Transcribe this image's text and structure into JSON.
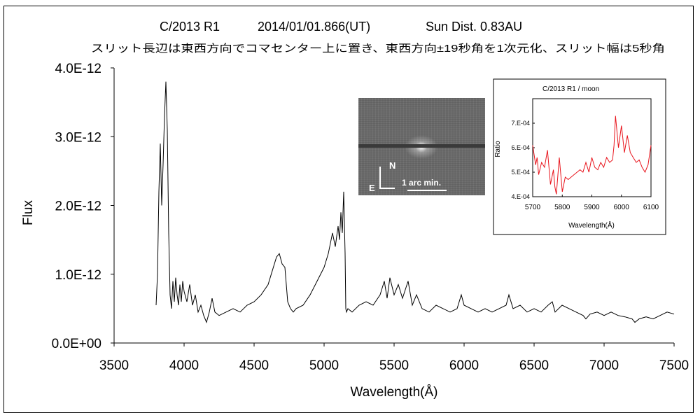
{
  "title": {
    "line1_a": "C/2013 R1",
    "line1_b": "2014/01/01.866(UT)",
    "line1_c": "Sun Dist. 0.83AU",
    "line2": "スリット長辺は東西方向でコマセンター上に置き、東西方向±19秒角を1次元化、スリット幅は5秒角"
  },
  "photo": {
    "north": "N",
    "east": "E",
    "scale_label": "1 arc min."
  },
  "chart_data": [
    {
      "type": "line",
      "xlabel": "Wavelength(Å)",
      "ylabel": "Flux",
      "xlim": [
        3500,
        7500
      ],
      "ylim": [
        0,
        4e-12
      ],
      "x_ticks": [
        3500,
        4000,
        4500,
        5000,
        5500,
        6000,
        6500,
        7000,
        7500
      ],
      "y_ticks": [
        0,
        1e-12,
        2e-12,
        3e-12,
        4e-12
      ],
      "y_tick_labels": [
        "0.0E+00",
        "1.0E-12",
        "2.0E-12",
        "3.0E-12",
        "4.0E-12"
      ],
      "grid": false,
      "color": "#000000",
      "series": [
        {
          "x": [
            3800,
            3810,
            3820,
            3830,
            3840,
            3850,
            3860,
            3870,
            3880,
            3890,
            3900,
            3910,
            3920,
            3930,
            3940,
            3950,
            3960,
            3970,
            3980,
            3990,
            4000,
            4020,
            4040,
            4060,
            4080,
            4100,
            4120,
            4140,
            4160,
            4180,
            4200,
            4220,
            4250,
            4300,
            4350,
            4400,
            4450,
            4500,
            4550,
            4600,
            4630,
            4660,
            4680,
            4700,
            4720,
            4740,
            4760,
            4780,
            4800,
            4850,
            4900,
            4950,
            5000,
            5030,
            5060,
            5080,
            5100,
            5110,
            5120,
            5130,
            5140,
            5150,
            5155,
            5160,
            5170,
            5200,
            5250,
            5300,
            5350,
            5400,
            5430,
            5450,
            5470,
            5500,
            5530,
            5560,
            5600,
            5630,
            5660,
            5700,
            5750,
            5800,
            5850,
            5900,
            5950,
            5980,
            6000,
            6050,
            6100,
            6150,
            6200,
            6250,
            6300,
            6320,
            6350,
            6400,
            6450,
            6500,
            6550,
            6600,
            6630,
            6650,
            6700,
            6750,
            6800,
            6850,
            6870,
            6900,
            6950,
            7000,
            7050,
            7100,
            7150,
            7200,
            7220,
            7250,
            7300,
            7350,
            7400,
            7450,
            7500
          ],
          "y": [
            5.5e-13,
            1e-12,
            2.2e-12,
            2.9e-12,
            2e-12,
            2.6e-12,
            3.3e-12,
            3.8e-12,
            3.1e-12,
            1.6e-12,
            7e-13,
            5e-13,
            9e-13,
            6e-13,
            9.5e-13,
            7e-13,
            5.5e-13,
            8.5e-13,
            6e-13,
            9e-13,
            7.5e-13,
            6e-13,
            8.5e-13,
            5.5e-13,
            7e-13,
            4.5e-13,
            5.5e-13,
            4e-13,
            3e-13,
            4.5e-13,
            6.5e-13,
            4.5e-13,
            4e-13,
            4.5e-13,
            5e-13,
            4.5e-13,
            5.5e-13,
            6e-13,
            7e-13,
            8.5e-13,
            1.05e-12,
            1.25e-12,
            1.3e-12,
            1.15e-12,
            1.1e-12,
            6e-13,
            5e-13,
            4.5e-13,
            5e-13,
            5.5e-13,
            7e-13,
            9e-13,
            1.1e-12,
            1.3e-12,
            1.6e-12,
            1.4e-12,
            1.7e-12,
            1.5e-12,
            1.9e-12,
            1.6e-12,
            2.2e-12,
            1.3e-12,
            5e-13,
            4.5e-13,
            5e-13,
            4.5e-13,
            5.5e-13,
            6e-13,
            5.5e-13,
            7e-13,
            9e-13,
            6.5e-13,
            9.5e-13,
            7e-13,
            8.5e-13,
            6.5e-13,
            9e-13,
            5.5e-13,
            7e-13,
            5e-13,
            4.5e-13,
            5.5e-13,
            5e-13,
            4.5e-13,
            5e-13,
            7e-13,
            5.5e-13,
            5e-13,
            4.5e-13,
            5e-13,
            4.5e-13,
            5e-13,
            5.5e-13,
            7e-13,
            5e-13,
            5.5e-13,
            4.5e-13,
            5e-13,
            4.5e-13,
            5.5e-13,
            6e-13,
            4.5e-13,
            5.5e-13,
            5e-13,
            4.5e-13,
            4e-13,
            3.5e-13,
            4.2e-13,
            4.5e-13,
            4e-13,
            4.5e-13,
            4e-13,
            3.8e-13,
            3.5e-13,
            3e-13,
            3.5e-13,
            3.8e-13,
            3.5e-13,
            4e-13,
            4.5e-13,
            4.2e-13
          ]
        }
      ]
    },
    {
      "type": "line",
      "title": "C/2013 R1 / moon",
      "xlabel": "Wavelength(Å)",
      "ylabel": "Ratio",
      "xlim": [
        5700,
        6100
      ],
      "ylim": [
        0.0004,
        0.0008
      ],
      "x_ticks": [
        5700,
        5800,
        5900,
        6000,
        6100
      ],
      "y_ticks": [
        0.0004,
        0.0005,
        0.0006,
        0.0007
      ],
      "y_tick_labels": [
        "4.E-04",
        "5.E-04",
        "6.E-04",
        "7.E-04"
      ],
      "grid": false,
      "color": "#e8141c",
      "series": [
        {
          "x": [
            5700,
            5710,
            5715,
            5720,
            5730,
            5740,
            5750,
            5760,
            5770,
            5775,
            5780,
            5790,
            5800,
            5810,
            5820,
            5830,
            5840,
            5850,
            5860,
            5870,
            5880,
            5890,
            5900,
            5910,
            5920,
            5930,
            5940,
            5950,
            5960,
            5970,
            5975,
            5980,
            5990,
            6000,
            6010,
            6020,
            6030,
            6040,
            6050,
            6060,
            6070,
            6080,
            6090,
            6100
          ],
          "y": [
            0.00061,
            0.00053,
            0.00056,
            0.00049,
            0.00054,
            0.00052,
            0.00059,
            0.00045,
            0.00051,
            0.00044,
            0.00041,
            0.00056,
            0.00042,
            0.00048,
            0.00047,
            0.00048,
            0.00049,
            0.0005,
            0.00051,
            0.0005,
            0.00054,
            0.0005,
            0.00056,
            0.00052,
            0.00051,
            0.00054,
            0.00052,
            0.00056,
            0.00054,
            0.00055,
            0.00061,
            0.00073,
            0.0006,
            0.00069,
            0.00058,
            0.00065,
            0.00058,
            0.00056,
            0.00054,
            0.00055,
            0.00052,
            0.0005,
            0.00053,
            0.00061
          ]
        }
      ]
    }
  ]
}
